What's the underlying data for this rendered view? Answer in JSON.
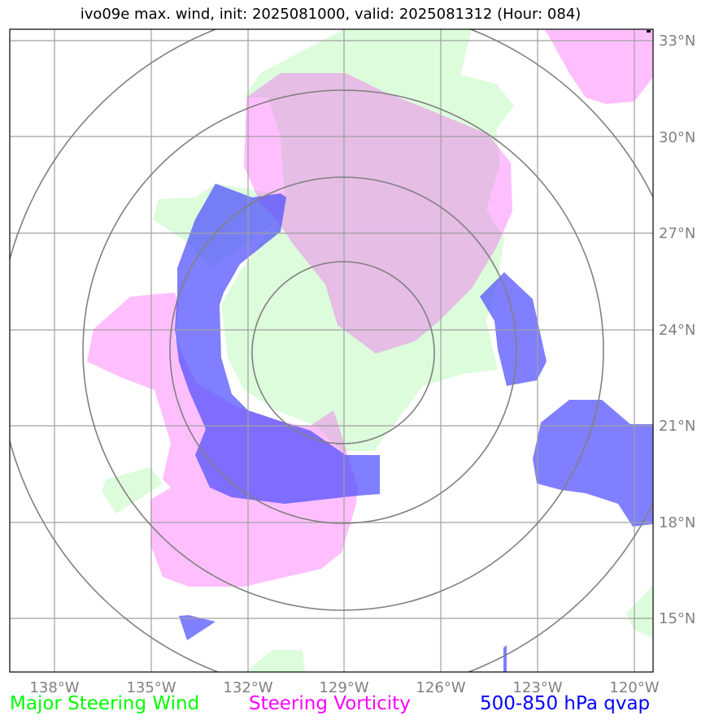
{
  "title": "ivo09e max. wind, init: 2025081000, valid: 2025081312 (Hour: 084)",
  "map": {
    "lon_ticks": [
      "138°W",
      "135°W",
      "132°W",
      "129°W",
      "126°W",
      "123°W",
      "120°W"
    ],
    "lat_ticks": [
      "33°N",
      "30°N",
      "27°N",
      "24°N",
      "21°N",
      "18°N",
      "15°N"
    ],
    "range_rings": 4,
    "colors": {
      "steering_wind": "#00ff00",
      "steering_vorticity": "#ff00ff",
      "qvap": "#0000ff",
      "grid": "#a0a0a0",
      "rings": "#808080"
    }
  },
  "legend": {
    "wind": "Major Steering Wind",
    "vorticity": "Steering Vorticity",
    "qvap": "500-850 hPa qvap"
  }
}
